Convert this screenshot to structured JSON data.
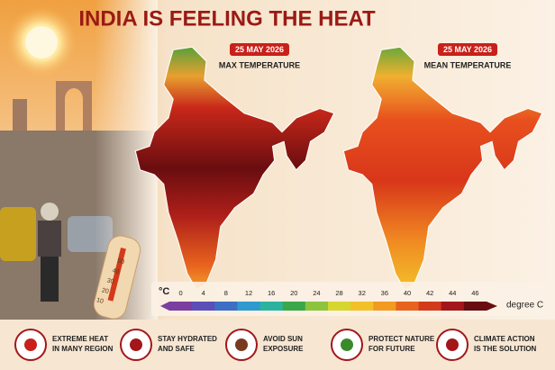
{
  "header": {
    "title": "INDIA IS FEELING THE HEAT"
  },
  "maps": [
    {
      "date": "25 MAY 2026",
      "label": "MAX TEMPERATURE"
    },
    {
      "date": "25 MAY 2026",
      "label": "MEAN TEMPERATURE"
    }
  ],
  "legend": {
    "unit": "°C",
    "ticks": [
      0,
      4,
      8,
      12,
      16,
      20,
      24,
      28,
      32,
      36,
      40,
      42,
      44,
      46
    ],
    "colors": [
      "#7b3fa0",
      "#5b4fb8",
      "#3d6fc4",
      "#2f9ad0",
      "#2bb3a0",
      "#3aa84a",
      "#8cc43c",
      "#d6d62e",
      "#f2c12a",
      "#f29a22",
      "#e8641e",
      "#d33a1a",
      "#a3171a",
      "#6a0d10"
    ],
    "end_label": "degree C"
  },
  "thermometer": {
    "labels": [
      "50",
      "40",
      "30",
      "20",
      "10"
    ]
  },
  "tips": [
    {
      "lines": [
        "EXTREME HEAT",
        "IN MANY REGION"
      ]
    },
    {
      "lines": [
        "STAY HYDRATED",
        "AND SAFE"
      ]
    },
    {
      "lines": [
        "AVOID SUN",
        "EXPOSURE"
      ]
    },
    {
      "lines": [
        "PROTECT NATURE",
        "FOR FUTURE"
      ]
    },
    {
      "lines": [
        "CLIMATE ACTION",
        "IS THE SOLUTION"
      ]
    }
  ]
}
